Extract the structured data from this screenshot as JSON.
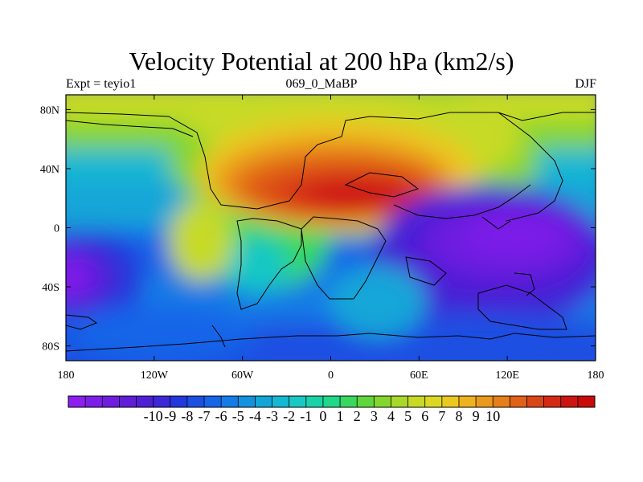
{
  "title": "Velocity Potential at 200 hPa (km2/s)",
  "subtitle_left": "Expt = teyio1",
  "subtitle_center": "069_0_MaBP",
  "subtitle_right": "DJF",
  "x_ticks": [
    "180",
    "120W",
    "60W",
    "0",
    "60E",
    "120E",
    "180"
  ],
  "y_ticks": [
    "80N",
    "40N",
    "0",
    "40S",
    "80S"
  ],
  "colorbar": {
    "labels": [
      "-10",
      "-9",
      "-8",
      "-7",
      "-6",
      "-5",
      "-4",
      "-3",
      "-2",
      "-1",
      "0",
      "1",
      "2",
      "3",
      "4",
      "5",
      "6",
      "7",
      "8",
      "9",
      "10"
    ],
    "colors": [
      "#8c1ff0",
      "#7d1ee8",
      "#6e1de0",
      "#5f1dd8",
      "#4f1fd6",
      "#3c28d6",
      "#2338dc",
      "#1a4fe2",
      "#1665e8",
      "#137ce6",
      "#1192de",
      "#12a6d8",
      "#14b8d2",
      "#17c8c4",
      "#1ad2a8",
      "#20d888",
      "#38d85e",
      "#5fd63c",
      "#84d62e",
      "#a8d82a",
      "#c6da26",
      "#dcd822",
      "#ebc820",
      "#eeb21e",
      "#eb991c",
      "#e67e1a",
      "#e06218",
      "#da4616",
      "#d42a14",
      "#ce1412",
      "#c80a0a"
    ]
  },
  "map_data": {
    "type": "contour_map",
    "variable": "Velocity Potential at 200 hPa",
    "units": "km2/s",
    "levels": [
      -10,
      -9,
      -8,
      -7,
      -6,
      -5,
      -4,
      -3,
      -2,
      -1,
      0,
      1,
      2,
      3,
      4,
      5,
      6,
      7,
      8,
      9,
      10
    ],
    "lon_range": [
      -180,
      180
    ],
    "lat_range": [
      -90,
      90
    ],
    "max_center": {
      "lon": 5,
      "lat": 25,
      "value": 10
    },
    "min_centers": [
      {
        "lon": 120,
        "lat": -10,
        "value": -10
      },
      {
        "lon": -175,
        "lat": -25,
        "value": -9
      }
    ]
  }
}
